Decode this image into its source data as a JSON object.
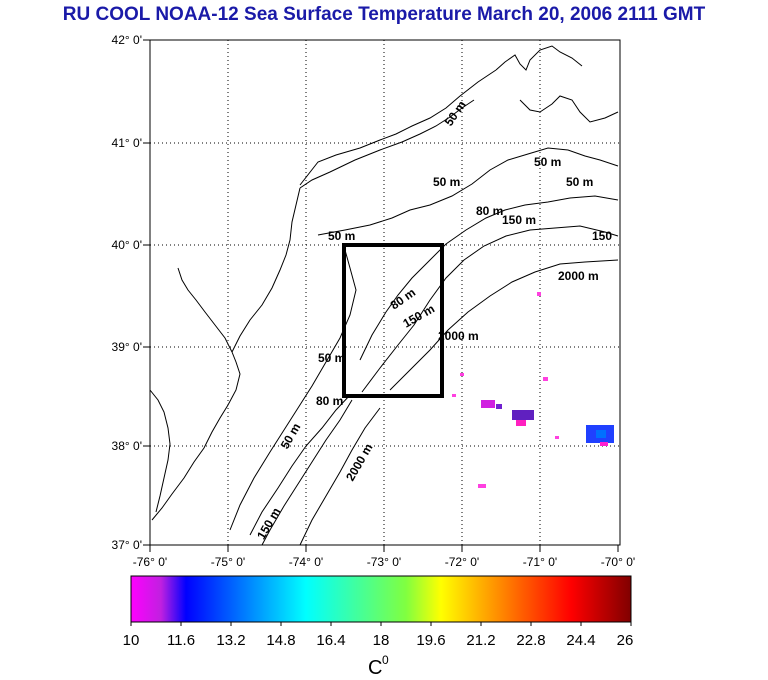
{
  "title": "RU COOL  NOAA-12 Sea Surface Temperature March 20, 2006 2111 GMT",
  "lat_labels": [
    "42° 0'",
    "41° 0'",
    "40° 0'",
    "39° 0'",
    "38° 0'",
    "37° 0'"
  ],
  "lon_labels": [
    "-76° 0'",
    "-75° 0'",
    "-74° 0'",
    "-73° 0'",
    "-72° 0'",
    "-71° 0'",
    "-70° 0'"
  ],
  "contours": [
    {
      "label": "50 m"
    },
    {
      "label": "50 m"
    },
    {
      "label": "50 m"
    },
    {
      "label": "50 m"
    },
    {
      "label": "50 m"
    },
    {
      "label": "80 m"
    },
    {
      "label": "150 m"
    },
    {
      "label": "150"
    },
    {
      "label": "2000 m"
    },
    {
      "label": "80 m"
    },
    {
      "label": "150 m"
    },
    {
      "label": "2000 m"
    },
    {
      "label": "50 m"
    },
    {
      "label": "80 m"
    },
    {
      "label": "50 m"
    },
    {
      "label": "2000 m"
    },
    {
      "label": "150 m"
    }
  ],
  "colorbar": {
    "ticks": [
      "10",
      "11.6",
      "13.2",
      "14.8",
      "16.4",
      "18",
      "19.6",
      "21.2",
      "22.8",
      "24.4",
      "26"
    ],
    "unit": "C",
    "unit_sup": "0",
    "min": 10,
    "max": 26,
    "colors": [
      "#ff00ff",
      "#0000ff",
      "#00ffff",
      "#00ff00",
      "#ffff00",
      "#ff0000",
      "#800000"
    ]
  }
}
